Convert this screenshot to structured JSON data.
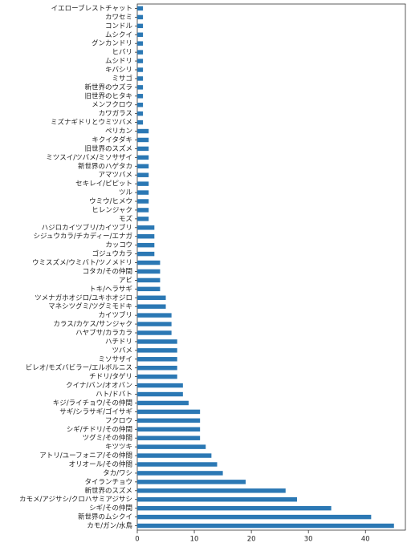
{
  "chart_data": {
    "type": "barh",
    "categories": [
      "イエローブレストチャット",
      "カワセミ",
      "コンドル",
      "ムシクイ",
      "グンカンドリ",
      "ヒバリ",
      "ムシドリ",
      "キバシリ",
      "ミサゴ",
      "新世界のウズラ",
      "旧世界のヒタキ",
      "メンフクロウ",
      "カワガラス",
      "ミズナギドリとウミツバメ",
      "ペリカン",
      "キクイタダキ",
      "旧世界のスズメ",
      "ミツスイ/ツバメ/ミソサザイ",
      "新世界のハゲタカ",
      "アマツバメ",
      "セキレイ/ピピット",
      "ツル",
      "ウミウ/ヒメウ",
      "ヒレンジャク",
      "モズ",
      "ハジロカイツブリ/カイツブリ",
      "シジュウカラ/チカディー/エナガ",
      "カッコウ",
      "ゴジュウカラ",
      "ウミスズメ/ウミバト/ツノメドリ",
      "コタカ/その仲間",
      "アビ",
      "トキ/ヘラサギ",
      "ツメナガホオジロ/ユキホオジロ",
      "マネシツグミ/ツグミモドキ",
      "カイツブリ",
      "カラス/カケス/サンジャク",
      "ハヤブサ/カラカラ",
      "ハチドリ",
      "ツバメ",
      "ミソサザイ",
      "ビレオ/モズバビラー/エルボルニス",
      "チドリ/タゲリ",
      "クイナ/バン/オオバン",
      "ハト/ドバト",
      "キジ/ライチョウ/その仲間",
      "サギ/シラサギ/ゴイサギ",
      "フクロウ",
      "シギ/チドリ/その仲間",
      "ツグミ/その仲間",
      "キツツキ",
      "アトリ/ユーフォニア/その仲間",
      "オリオール/その仲間",
      "タカ/ワシ",
      "タイランチョウ",
      "新世界のスズメ",
      "カモメ/アジサシ/クロハサミアジサシ",
      "シギ/その仲間",
      "新世界のムシクイ",
      "カモ/ガン/水鳥"
    ],
    "values": [
      1,
      1,
      1,
      1,
      1,
      1,
      1,
      1,
      1,
      1,
      1,
      1,
      1,
      1,
      2,
      2,
      2,
      2,
      2,
      2,
      2,
      2,
      2,
      2,
      2,
      3,
      3,
      3,
      3,
      4,
      4,
      4,
      4,
      5,
      5,
      6,
      6,
      6,
      7,
      7,
      7,
      7,
      7,
      8,
      8,
      9,
      11,
      11,
      11,
      11,
      12,
      13,
      14,
      15,
      19,
      26,
      28,
      34,
      41,
      45
    ],
    "color": "#2b78b4",
    "xlim": [
      0,
      47
    ],
    "xticks": [
      0,
      10,
      20,
      30,
      40
    ]
  }
}
